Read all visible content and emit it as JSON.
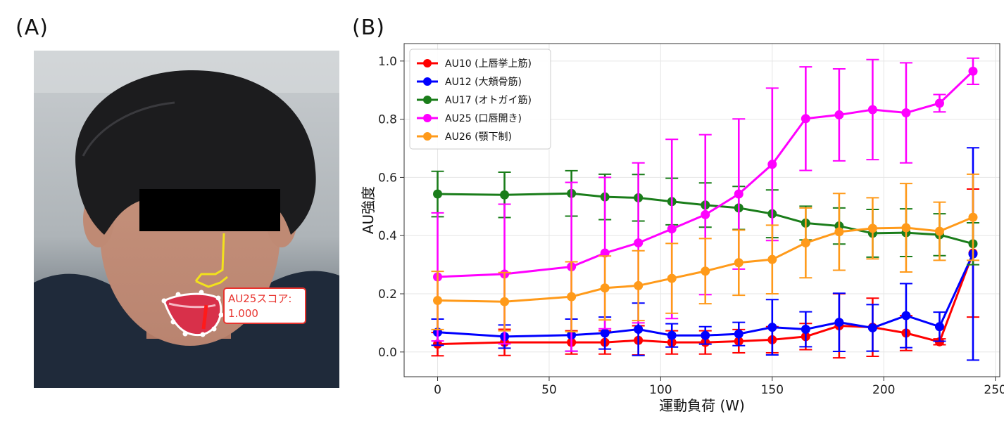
{
  "panels": {
    "a_label": "(A)",
    "b_label": "(B)"
  },
  "photo": {
    "annotation_line1": "AU25スコア:",
    "annotation_line2": "1.000",
    "annotation_color": "#e8332e",
    "landmark_color": "#f2e21c"
  },
  "chart_data": {
    "type": "line",
    "xlabel": "運動負荷 (W)",
    "ylabel": "AU強度",
    "xlim": [
      -15,
      252
    ],
    "ylim": [
      -0.085,
      1.06
    ],
    "x_ticks": [
      0,
      50,
      100,
      150,
      200,
      250
    ],
    "y_ticks": [
      0.0,
      0.2,
      0.4,
      0.6,
      0.8,
      1.0
    ],
    "y_tick_labels": [
      "0.0",
      "0.2",
      "0.4",
      "0.6",
      "0.8",
      "1.0"
    ],
    "grid": true,
    "legend_position": "top-left",
    "x": [
      0,
      30,
      60,
      75,
      90,
      105,
      120,
      135,
      150,
      165,
      180,
      195,
      210,
      225,
      240
    ],
    "series": [
      {
        "name": "AU10 (上唇挙上筋)",
        "color": "#ff0000",
        "values": [
          0.027,
          0.033,
          0.033,
          0.033,
          0.04,
          0.033,
          0.033,
          0.037,
          0.042,
          0.053,
          0.09,
          0.085,
          0.065,
          0.035,
          0.34
        ],
        "errors": [
          0.04,
          0.045,
          0.04,
          0.04,
          0.05,
          0.04,
          0.04,
          0.04,
          0.045,
          0.045,
          0.11,
          0.1,
          0.06,
          0.01,
          0.22
        ]
      },
      {
        "name": "AU12 (大頬骨筋)",
        "color": "#0000ff",
        "values": [
          0.068,
          0.053,
          0.058,
          0.065,
          0.078,
          0.057,
          0.057,
          0.062,
          0.085,
          0.078,
          0.102,
          0.083,
          0.125,
          0.087,
          0.337
        ],
        "errors": [
          0.045,
          0.04,
          0.055,
          0.055,
          0.09,
          0.04,
          0.03,
          0.04,
          0.095,
          0.06,
          0.1,
          0.08,
          0.11,
          0.05,
          0.365
        ]
      },
      {
        "name": "AU17 (オトガイ筋)",
        "color": "#1a7d1a",
        "values": [
          0.543,
          0.54,
          0.545,
          0.533,
          0.53,
          0.517,
          0.505,
          0.495,
          0.475,
          0.443,
          0.433,
          0.408,
          0.41,
          0.403,
          0.372
        ],
        "errors": [
          0.078,
          0.078,
          0.078,
          0.078,
          0.08,
          0.08,
          0.076,
          0.074,
          0.082,
          0.058,
          0.062,
          0.082,
          0.082,
          0.072,
          0.072
        ]
      },
      {
        "name": "AU25 (口唇開き)",
        "color": "#ff00ff",
        "values": [
          0.258,
          0.268,
          0.293,
          0.34,
          0.375,
          0.423,
          0.472,
          0.543,
          0.645,
          0.802,
          0.815,
          0.833,
          0.822,
          0.855,
          0.965
        ],
        "errors": [
          0.22,
          0.24,
          0.29,
          0.26,
          0.275,
          0.308,
          0.275,
          0.258,
          0.262,
          0.178,
          0.158,
          0.172,
          0.172,
          0.03,
          0.045
        ]
      },
      {
        "name": "AU26 (顎下制)",
        "color": "#ff9a1a",
        "values": [
          0.177,
          0.173,
          0.19,
          0.22,
          0.228,
          0.253,
          0.278,
          0.307,
          0.318,
          0.375,
          0.413,
          0.425,
          0.427,
          0.415,
          0.463
        ],
        "errors": [
          0.1,
          0.1,
          0.12,
          0.11,
          0.12,
          0.12,
          0.112,
          0.112,
          0.118,
          0.12,
          0.132,
          0.105,
          0.152,
          0.1,
          0.148
        ]
      }
    ]
  }
}
